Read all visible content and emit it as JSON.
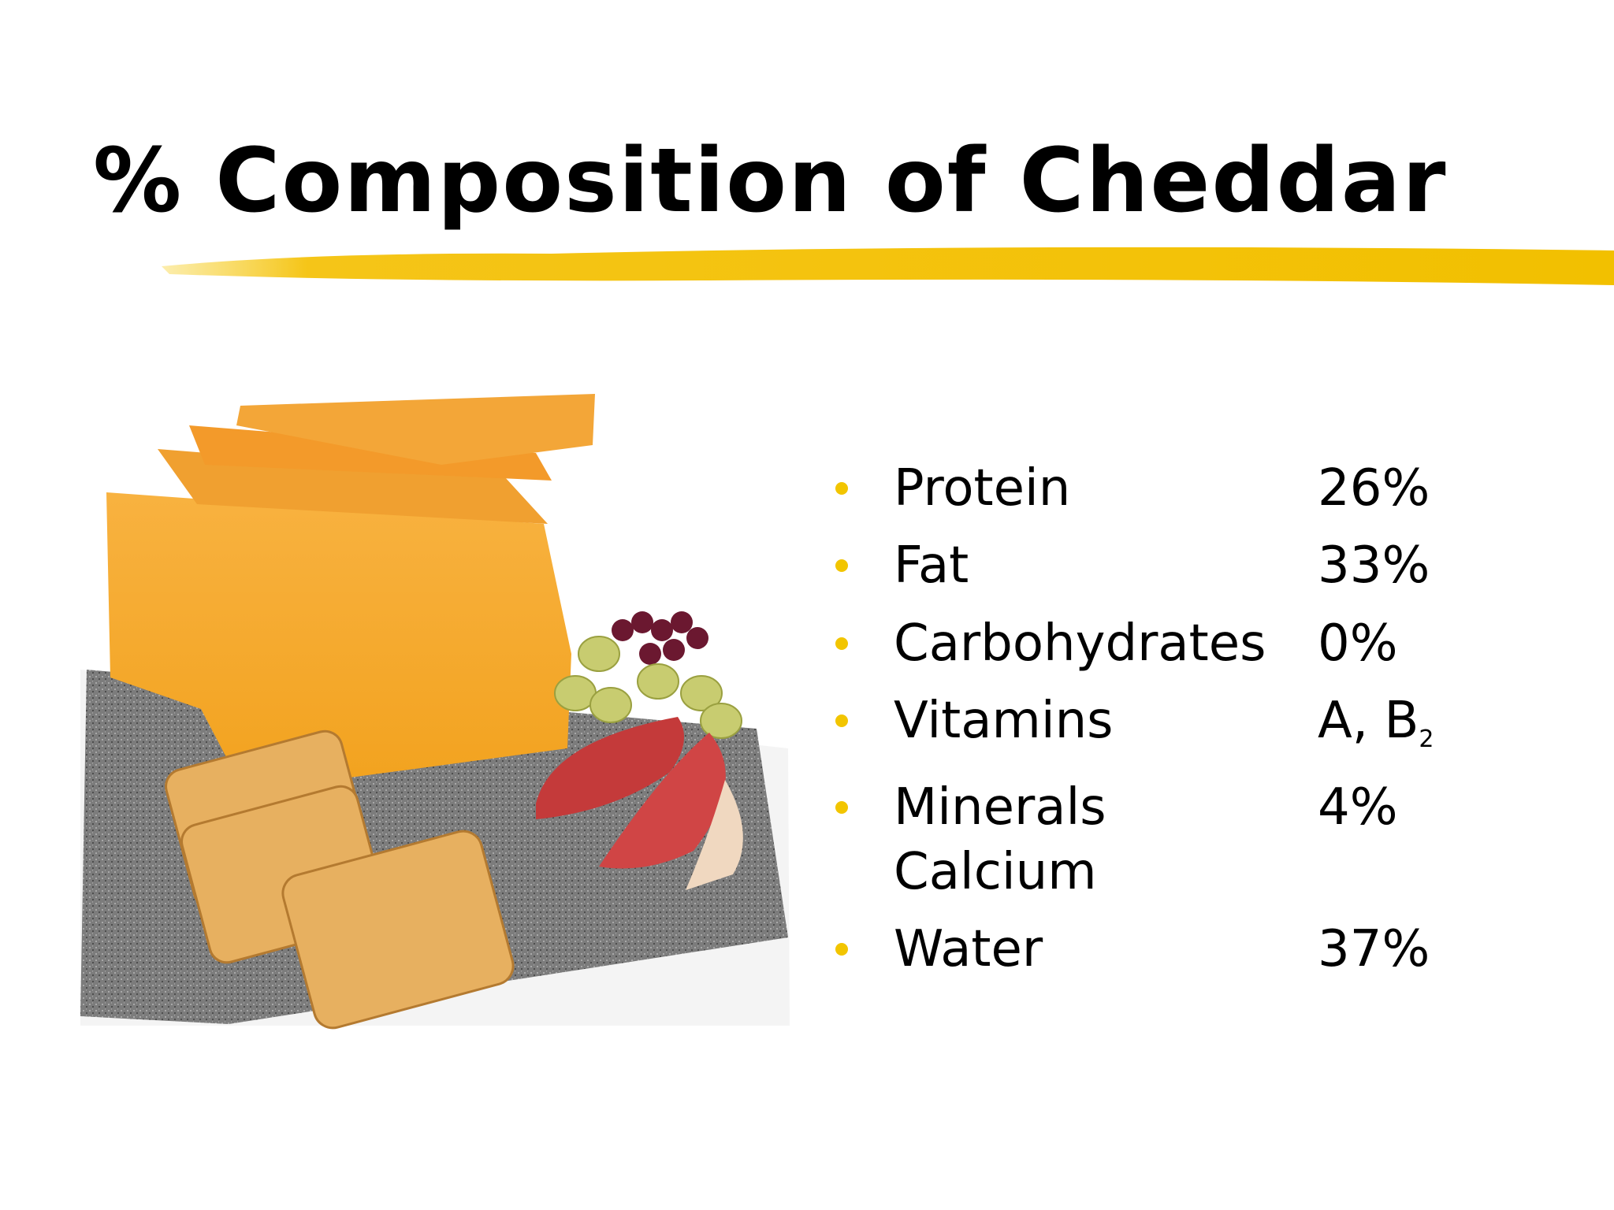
{
  "slide": {
    "title": "% Composition of Cheddar",
    "items": [
      {
        "name": "Protein",
        "value": "26%"
      },
      {
        "name": "Fat",
        "value": "33%"
      },
      {
        "name": "Carbohydrates",
        "value": "0%"
      },
      {
        "name": "Vitamins",
        "value": "A, B",
        "subscript": "2"
      },
      {
        "name": "Minerals",
        "detail": "Calcium",
        "value": "4%"
      },
      {
        "name": "Water",
        "value": "37%"
      }
    ]
  }
}
